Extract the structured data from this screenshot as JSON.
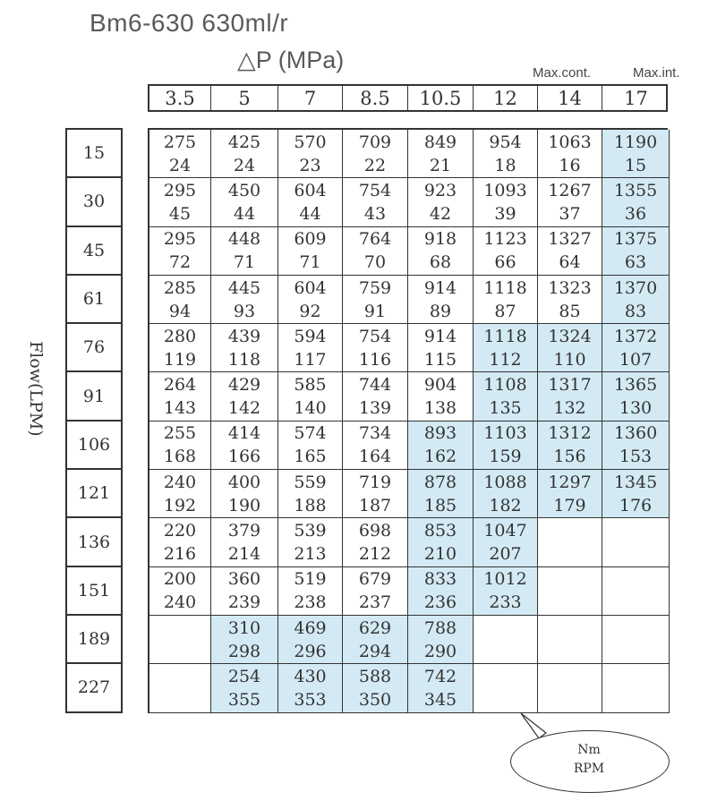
{
  "title": "Bm6-630  630ml/r",
  "pressure_label": "△P   (MPa)",
  "max_cont_label": "Max.cont.",
  "max_int_label": "Max.int.",
  "y_axis_label": "Flow(LPM)",
  "legend": {
    "top": "Nm",
    "bottom": "RPM"
  },
  "pressures": [
    "3.5",
    "5",
    "7",
    "8.5",
    "10.5",
    "12",
    "14",
    "17"
  ],
  "rows": [
    {
      "flow": "15",
      "cells": [
        [
          "275",
          "24"
        ],
        [
          "425",
          "24"
        ],
        [
          "570",
          "23"
        ],
        [
          "709",
          "22"
        ],
        [
          "849",
          "21"
        ],
        [
          "954",
          "18"
        ],
        [
          "1063",
          "16"
        ],
        [
          "1190",
          "15"
        ]
      ],
      "hl": [
        0,
        0,
        0,
        0,
        0,
        0,
        0,
        1
      ]
    },
    {
      "flow": "30",
      "cells": [
        [
          "295",
          "45"
        ],
        [
          "450",
          "44"
        ],
        [
          "604",
          "44"
        ],
        [
          "754",
          "43"
        ],
        [
          "923",
          "42"
        ],
        [
          "1093",
          "39"
        ],
        [
          "1267",
          "37"
        ],
        [
          "1355",
          "36"
        ]
      ],
      "hl": [
        0,
        0,
        0,
        0,
        0,
        0,
        0,
        1
      ]
    },
    {
      "flow": "45",
      "cells": [
        [
          "295",
          "72"
        ],
        [
          "448",
          "71"
        ],
        [
          "609",
          "71"
        ],
        [
          "764",
          "70"
        ],
        [
          "918",
          "68"
        ],
        [
          "1123",
          "66"
        ],
        [
          "1327",
          "64"
        ],
        [
          "1375",
          "63"
        ]
      ],
      "hl": [
        0,
        0,
        0,
        0,
        0,
        0,
        0,
        1
      ]
    },
    {
      "flow": "61",
      "cells": [
        [
          "285",
          "94"
        ],
        [
          "445",
          "93"
        ],
        [
          "604",
          "92"
        ],
        [
          "759",
          "91"
        ],
        [
          "914",
          "89"
        ],
        [
          "1118",
          "87"
        ],
        [
          "1323",
          "85"
        ],
        [
          "1370",
          "83"
        ]
      ],
      "hl": [
        0,
        0,
        0,
        0,
        0,
        0,
        0,
        1
      ]
    },
    {
      "flow": "76",
      "cells": [
        [
          "280",
          "119"
        ],
        [
          "439",
          "118"
        ],
        [
          "594",
          "117"
        ],
        [
          "754",
          "116"
        ],
        [
          "914",
          "115"
        ],
        [
          "1118",
          "112"
        ],
        [
          "1324",
          "110"
        ],
        [
          "1372",
          "107"
        ]
      ],
      "hl": [
        0,
        0,
        0,
        0,
        0,
        1,
        1,
        1
      ]
    },
    {
      "flow": "91",
      "cells": [
        [
          "264",
          "143"
        ],
        [
          "429",
          "142"
        ],
        [
          "585",
          "140"
        ],
        [
          "744",
          "139"
        ],
        [
          "904",
          "138"
        ],
        [
          "1108",
          "135"
        ],
        [
          "1317",
          "132"
        ],
        [
          "1365",
          "130"
        ]
      ],
      "hl": [
        0,
        0,
        0,
        0,
        0,
        1,
        1,
        1
      ]
    },
    {
      "flow": "106",
      "cells": [
        [
          "255",
          "168"
        ],
        [
          "414",
          "166"
        ],
        [
          "574",
          "165"
        ],
        [
          "734",
          "164"
        ],
        [
          "893",
          "162"
        ],
        [
          "1103",
          "159"
        ],
        [
          "1312",
          "156"
        ],
        [
          "1360",
          "153"
        ]
      ],
      "hl": [
        0,
        0,
        0,
        0,
        1,
        1,
        1,
        1
      ]
    },
    {
      "flow": "121",
      "cells": [
        [
          "240",
          "192"
        ],
        [
          "400",
          "190"
        ],
        [
          "559",
          "188"
        ],
        [
          "719",
          "187"
        ],
        [
          "878",
          "185"
        ],
        [
          "1088",
          "182"
        ],
        [
          "1297",
          "179"
        ],
        [
          "1345",
          "176"
        ]
      ],
      "hl": [
        0,
        0,
        0,
        0,
        1,
        1,
        1,
        1
      ]
    },
    {
      "flow": "136",
      "cells": [
        [
          "220",
          "216"
        ],
        [
          "379",
          "214"
        ],
        [
          "539",
          "213"
        ],
        [
          "698",
          "212"
        ],
        [
          "853",
          "210"
        ],
        [
          "1047",
          "207"
        ],
        [
          "",
          ""
        ],
        [
          "",
          ""
        ]
      ],
      "hl": [
        0,
        0,
        0,
        0,
        1,
        1,
        0,
        0
      ]
    },
    {
      "flow": "151",
      "cells": [
        [
          "200",
          "240"
        ],
        [
          "360",
          "239"
        ],
        [
          "519",
          "238"
        ],
        [
          "679",
          "237"
        ],
        [
          "833",
          "236"
        ],
        [
          "1012",
          "233"
        ],
        [
          "",
          ""
        ],
        [
          "",
          ""
        ]
      ],
      "hl": [
        0,
        0,
        0,
        0,
        1,
        1,
        0,
        0
      ]
    },
    {
      "flow": "189",
      "cells": [
        [
          "",
          ""
        ],
        [
          "310",
          "298"
        ],
        [
          "469",
          "296"
        ],
        [
          "629",
          "294"
        ],
        [
          "788",
          "290"
        ],
        [
          "",
          ""
        ],
        [
          "",
          ""
        ],
        [
          "",
          ""
        ]
      ],
      "hl": [
        0,
        1,
        1,
        1,
        1,
        0,
        0,
        0
      ]
    },
    {
      "flow": "227",
      "cells": [
        [
          "",
          ""
        ],
        [
          "254",
          "355"
        ],
        [
          "430",
          "353"
        ],
        [
          "588",
          "350"
        ],
        [
          "742",
          "345"
        ],
        [
          "",
          ""
        ],
        [
          "",
          ""
        ],
        [
          "",
          ""
        ]
      ],
      "hl": [
        0,
        1,
        1,
        1,
        1,
        0,
        0,
        0
      ]
    }
  ]
}
